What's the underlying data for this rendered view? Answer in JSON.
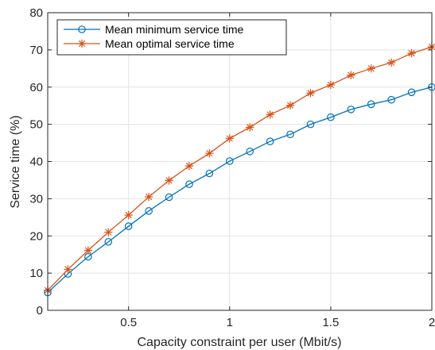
{
  "chart_data": {
    "type": "line",
    "xlabel": "Capacity constraint per user (Mbit/s)",
    "ylabel": "Service time (%)",
    "xlim": [
      0.1,
      2
    ],
    "ylim": [
      0,
      80
    ],
    "x_ticks": [
      0.5,
      1,
      1.5,
      2
    ],
    "x_tick_labels": [
      "0.5",
      "1",
      "1.5",
      "2"
    ],
    "y_ticks": [
      0,
      10,
      20,
      30,
      40,
      50,
      60,
      70,
      80
    ],
    "y_tick_labels": [
      "0",
      "10",
      "20",
      "30",
      "40",
      "50",
      "60",
      "70",
      "80"
    ],
    "grid": true,
    "legend_position": "top-left",
    "x": [
      0.1,
      0.2,
      0.3,
      0.4,
      0.5,
      0.6,
      0.7,
      0.8,
      0.9,
      1.0,
      1.1,
      1.2,
      1.3,
      1.4,
      1.5,
      1.6,
      1.7,
      1.8,
      1.9,
      2.0
    ],
    "series": [
      {
        "name": "Mean minimum service time",
        "color": "#0072BD",
        "marker": "circle",
        "values": [
          4.8,
          9.8,
          14.4,
          18.4,
          22.6,
          26.7,
          30.4,
          33.9,
          36.8,
          40.1,
          42.7,
          45.4,
          47.3,
          50.0,
          51.9,
          54.0,
          55.4,
          56.6,
          58.6,
          60.0
        ]
      },
      {
        "name": "Mean optimal service time",
        "color": "#D95319",
        "marker": "asterisk",
        "values": [
          5.4,
          11.0,
          16.1,
          21.0,
          25.6,
          30.5,
          34.9,
          38.8,
          42.2,
          46.2,
          49.2,
          52.6,
          55.1,
          58.4,
          60.6,
          63.2,
          65.0,
          66.6,
          69.1,
          70.8
        ]
      }
    ]
  }
}
